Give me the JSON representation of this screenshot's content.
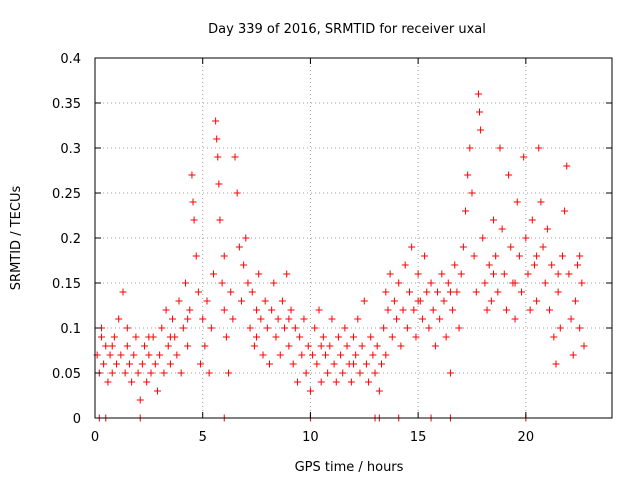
{
  "chart_data": {
    "type": "scatter",
    "title": "Day 339 of 2016, SRMTID for receiver uxal",
    "xlabel": "GPS time / hours",
    "ylabel": "SRMTID / TECUs",
    "xlim": [
      0,
      24
    ],
    "ylim": [
      0,
      0.4
    ],
    "x_ticks": [
      0,
      5,
      10,
      15,
      20
    ],
    "x_tick_labels": [
      "0",
      "5",
      "10",
      "15",
      "20"
    ],
    "y_ticks": [
      0,
      0.05,
      0.1,
      0.15,
      0.2,
      0.25,
      0.3,
      0.35,
      0.4
    ],
    "y_tick_labels": [
      "0",
      "0.05",
      "0.1",
      "0.15",
      "0.2",
      "0.25",
      "0.3",
      "0.35",
      "0.4"
    ],
    "grid": true,
    "marker": "plus",
    "series_color": "#ff0000",
    "series": [
      {
        "name": "SRMTID",
        "points": [
          [
            0.1,
            0.07
          ],
          [
            0.2,
            0.05
          ],
          [
            0.3,
            0.09
          ],
          [
            0.4,
            0.06
          ],
          [
            0.5,
            0.08
          ],
          [
            0.6,
            0.04
          ],
          [
            0.7,
            0.07
          ],
          [
            0.8,
            0.05
          ],
          [
            0.9,
            0.09
          ],
          [
            1.0,
            0.06
          ],
          [
            1.1,
            0.11
          ],
          [
            1.2,
            0.07
          ],
          [
            1.3,
            0.14
          ],
          [
            1.4,
            0.05
          ],
          [
            1.5,
            0.08
          ],
          [
            1.6,
            0.06
          ],
          [
            1.7,
            0.04
          ],
          [
            1.8,
            0.07
          ],
          [
            1.9,
            0.09
          ],
          [
            2.0,
            0.05
          ],
          [
            2.1,
            0.02
          ],
          [
            2.2,
            0.06
          ],
          [
            2.3,
            0.08
          ],
          [
            2.4,
            0.04
          ],
          [
            2.5,
            0.07
          ],
          [
            2.6,
            0.05
          ],
          [
            2.7,
            0.09
          ],
          [
            2.8,
            0.06
          ],
          [
            2.9,
            0.03
          ],
          [
            3.0,
            0.07
          ],
          [
            3.1,
            0.1
          ],
          [
            3.2,
            0.05
          ],
          [
            3.3,
            0.12
          ],
          [
            3.4,
            0.08
          ],
          [
            3.5,
            0.06
          ],
          [
            3.6,
            0.11
          ],
          [
            3.7,
            0.09
          ],
          [
            3.8,
            0.07
          ],
          [
            3.9,
            0.13
          ],
          [
            4.0,
            0.05
          ],
          [
            4.1,
            0.1
          ],
          [
            4.2,
            0.15
          ],
          [
            4.3,
            0.08
          ],
          [
            4.4,
            0.12
          ],
          [
            4.5,
            0.27
          ],
          [
            4.55,
            0.24
          ],
          [
            4.6,
            0.22
          ],
          [
            4.7,
            0.18
          ],
          [
            4.8,
            0.14
          ],
          [
            4.9,
            0.06
          ],
          [
            5.0,
            0.11
          ],
          [
            5.1,
            0.08
          ],
          [
            5.2,
            0.13
          ],
          [
            5.3,
            0.05
          ],
          [
            5.4,
            0.1
          ],
          [
            5.5,
            0.16
          ],
          [
            5.6,
            0.33
          ],
          [
            5.65,
            0.31
          ],
          [
            5.7,
            0.29
          ],
          [
            5.75,
            0.26
          ],
          [
            5.8,
            0.22
          ],
          [
            5.9,
            0.15
          ],
          [
            6.0,
            0.12
          ],
          [
            6.1,
            0.09
          ],
          [
            6.2,
            0.05
          ],
          [
            6.3,
            0.14
          ],
          [
            6.4,
            0.11
          ],
          [
            6.5,
            0.29
          ],
          [
            6.6,
            0.25
          ],
          [
            6.7,
            0.19
          ],
          [
            6.8,
            0.13
          ],
          [
            6.9,
            0.17
          ],
          [
            7.0,
            0.2
          ],
          [
            7.1,
            0.15
          ],
          [
            7.2,
            0.1
          ],
          [
            7.3,
            0.14
          ],
          [
            7.4,
            0.08
          ],
          [
            7.5,
            0.12
          ],
          [
            7.6,
            0.16
          ],
          [
            7.7,
            0.11
          ],
          [
            7.8,
            0.07
          ],
          [
            7.9,
            0.13
          ],
          [
            8.0,
            0.1
          ],
          [
            8.1,
            0.06
          ],
          [
            8.2,
            0.12
          ],
          [
            8.3,
            0.15
          ],
          [
            8.4,
            0.09
          ],
          [
            8.5,
            0.11
          ],
          [
            8.6,
            0.07
          ],
          [
            8.7,
            0.13
          ],
          [
            8.8,
            0.1
          ],
          [
            8.9,
            0.16
          ],
          [
            9.0,
            0.08
          ],
          [
            9.1,
            0.12
          ],
          [
            9.2,
            0.06
          ],
          [
            9.3,
            0.1
          ],
          [
            9.4,
            0.04
          ],
          [
            9.5,
            0.09
          ],
          [
            9.6,
            0.07
          ],
          [
            9.7,
            0.11
          ],
          [
            9.8,
            0.05
          ],
          [
            9.9,
            0.08
          ],
          [
            10.0,
            0.03
          ],
          [
            10.1,
            0.07
          ],
          [
            10.2,
            0.1
          ],
          [
            10.3,
            0.06
          ],
          [
            10.4,
            0.12
          ],
          [
            10.5,
            0.04
          ],
          [
            10.6,
            0.09
          ],
          [
            10.7,
            0.07
          ],
          [
            10.8,
            0.05
          ],
          [
            10.9,
            0.08
          ],
          [
            11.0,
            0.11
          ],
          [
            11.1,
            0.06
          ],
          [
            11.2,
            0.04
          ],
          [
            11.3,
            0.09
          ],
          [
            11.4,
            0.07
          ],
          [
            11.5,
            0.05
          ],
          [
            11.6,
            0.1
          ],
          [
            11.7,
            0.08
          ],
          [
            11.8,
            0.06
          ],
          [
            11.9,
            0.04
          ],
          [
            12.0,
            0.09
          ],
          [
            12.1,
            0.07
          ],
          [
            12.2,
            0.11
          ],
          [
            12.3,
            0.05
          ],
          [
            12.4,
            0.08
          ],
          [
            12.5,
            0.13
          ],
          [
            12.6,
            0.06
          ],
          [
            12.7,
            0.04
          ],
          [
            12.8,
            0.09
          ],
          [
            12.9,
            0.07
          ],
          [
            13.0,
            0.05
          ],
          [
            13.1,
            0.08
          ],
          [
            13.2,
            0.03
          ],
          [
            13.3,
            0.06
          ],
          [
            13.4,
            0.1
          ],
          [
            13.5,
            0.14
          ],
          [
            13.6,
            0.12
          ],
          [
            13.7,
            0.16
          ],
          [
            13.8,
            0.09
          ],
          [
            13.9,
            0.13
          ],
          [
            14.0,
            0.11
          ],
          [
            14.1,
            0.15
          ],
          [
            14.2,
            0.08
          ],
          [
            14.3,
            0.12
          ],
          [
            14.4,
            0.17
          ],
          [
            14.5,
            0.1
          ],
          [
            14.6,
            0.14
          ],
          [
            14.7,
            0.19
          ],
          [
            14.8,
            0.12
          ],
          [
            14.9,
            0.09
          ],
          [
            15.0,
            0.16
          ],
          [
            15.1,
            0.13
          ],
          [
            15.2,
            0.11
          ],
          [
            15.3,
            0.18
          ],
          [
            15.4,
            0.14
          ],
          [
            15.5,
            0.1
          ],
          [
            15.6,
            0.15
          ],
          [
            15.7,
            0.12
          ],
          [
            15.8,
            0.08
          ],
          [
            15.9,
            0.14
          ],
          [
            16.0,
            0.11
          ],
          [
            16.1,
            0.16
          ],
          [
            16.2,
            0.13
          ],
          [
            16.3,
            0.09
          ],
          [
            16.4,
            0.15
          ],
          [
            16.5,
            0.05
          ],
          [
            16.6,
            0.12
          ],
          [
            16.7,
            0.17
          ],
          [
            16.8,
            0.14
          ],
          [
            16.9,
            0.1
          ],
          [
            17.0,
            0.16
          ],
          [
            17.1,
            0.19
          ],
          [
            17.2,
            0.23
          ],
          [
            17.3,
            0.27
          ],
          [
            17.4,
            0.3
          ],
          [
            17.5,
            0.25
          ],
          [
            17.6,
            0.18
          ],
          [
            17.7,
            0.14
          ],
          [
            17.8,
            0.36
          ],
          [
            17.85,
            0.34
          ],
          [
            17.9,
            0.32
          ],
          [
            18.0,
            0.2
          ],
          [
            18.1,
            0.15
          ],
          [
            18.2,
            0.12
          ],
          [
            18.3,
            0.17
          ],
          [
            18.4,
            0.13
          ],
          [
            18.5,
            0.22
          ],
          [
            18.6,
            0.18
          ],
          [
            18.7,
            0.14
          ],
          [
            18.8,
            0.3
          ],
          [
            18.9,
            0.21
          ],
          [
            19.0,
            0.16
          ],
          [
            19.1,
            0.12
          ],
          [
            19.2,
            0.27
          ],
          [
            19.3,
            0.19
          ],
          [
            19.4,
            0.15
          ],
          [
            19.5,
            0.11
          ],
          [
            19.6,
            0.24
          ],
          [
            19.7,
            0.18
          ],
          [
            19.8,
            0.14
          ],
          [
            19.9,
            0.29
          ],
          [
            20.0,
            0.2
          ],
          [
            20.1,
            0.16
          ],
          [
            20.2,
            0.12
          ],
          [
            20.3,
            0.22
          ],
          [
            20.4,
            0.17
          ],
          [
            20.5,
            0.13
          ],
          [
            20.6,
            0.3
          ],
          [
            20.7,
            0.24
          ],
          [
            20.8,
            0.19
          ],
          [
            20.9,
            0.15
          ],
          [
            21.0,
            0.21
          ],
          [
            21.1,
            0.12
          ],
          [
            21.2,
            0.17
          ],
          [
            21.3,
            0.09
          ],
          [
            21.4,
            0.06
          ],
          [
            21.5,
            0.14
          ],
          [
            21.6,
            0.1
          ],
          [
            21.7,
            0.18
          ],
          [
            21.8,
            0.23
          ],
          [
            21.9,
            0.28
          ],
          [
            22.0,
            0.16
          ],
          [
            22.1,
            0.11
          ],
          [
            22.2,
            0.07
          ],
          [
            22.3,
            0.13
          ],
          [
            22.4,
            0.17
          ],
          [
            22.5,
            0.1
          ],
          [
            22.6,
            0.15
          ],
          [
            22.7,
            0.08
          ],
          [
            0.3,
            0.1
          ],
          [
            0.8,
            0.08
          ],
          [
            1.5,
            0.1
          ],
          [
            2.5,
            0.09
          ],
          [
            3.5,
            0.09
          ],
          [
            4.3,
            0.11
          ],
          [
            6.0,
            0.18
          ],
          [
            7.5,
            0.09
          ],
          [
            9.0,
            0.11
          ],
          [
            10.5,
            0.08
          ],
          [
            12.0,
            0.06
          ],
          [
            13.5,
            0.07
          ],
          [
            15.0,
            0.13
          ],
          [
            16.5,
            0.14
          ],
          [
            18.5,
            0.16
          ],
          [
            19.5,
            0.15
          ],
          [
            20.5,
            0.18
          ],
          [
            21.5,
            0.16
          ],
          [
            22.5,
            0.18
          ]
        ]
      }
    ],
    "zero_markers": [
      0.2,
      0.5,
      2.1,
      6.0,
      10.0,
      13.0,
      13.2,
      14.1,
      15.6,
      16.5,
      20.0
    ]
  }
}
